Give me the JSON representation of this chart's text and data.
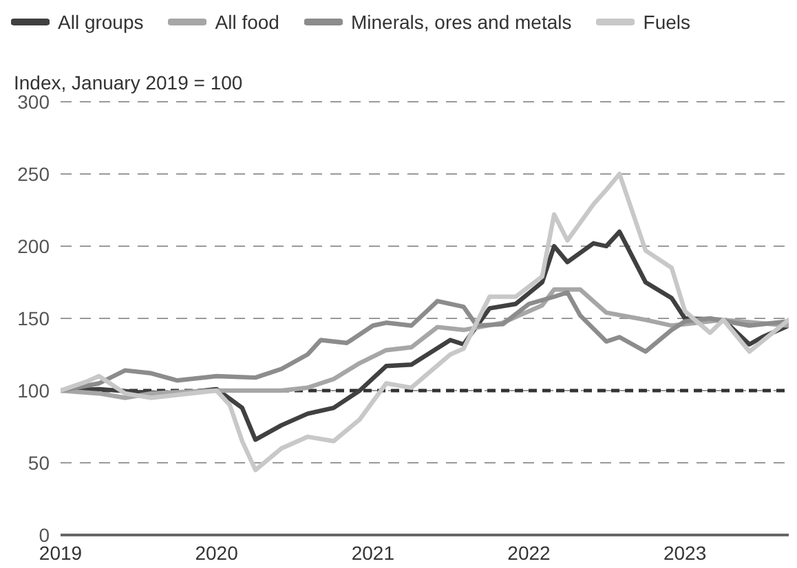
{
  "chart_data": {
    "type": "line",
    "ylabel": "Index, January 2019 = 100",
    "legend": "top left",
    "grid": "y",
    "marker": "none",
    "line_style": "solid",
    "xlim": [
      "2019-01",
      "2023-09"
    ],
    "xticks": [
      "2019",
      "2020",
      "2021",
      "2022",
      "2023"
    ],
    "ylim": [
      0,
      300
    ],
    "yticks": [
      0,
      50,
      100,
      150,
      200,
      250,
      300
    ],
    "ref_lines": [
      {
        "axis": "y",
        "value": 100,
        "color": "#333333",
        "line_style": "dashed"
      }
    ],
    "series": [
      {
        "name": "All groups",
        "color": "#404040",
        "x": [
          "2019-01",
          "2019-04",
          "2019-07",
          "2019-10",
          "2020-01",
          "2020-03",
          "2020-04",
          "2020-06",
          "2020-08",
          "2020-10",
          "2020-12",
          "2021-02",
          "2021-04",
          "2021-07",
          "2021-08",
          "2021-10",
          "2021-12",
          "2022-02",
          "2022-03",
          "2022-04",
          "2022-06",
          "2022-07",
          "2022-08",
          "2022-10",
          "2022-12",
          "2023-01",
          "2023-04",
          "2023-06",
          "2023-07",
          "2023-09"
        ],
        "values": [
          100,
          101,
          99,
          98,
          101,
          88,
          66,
          76,
          84,
          88,
          100,
          117,
          118,
          135,
          132,
          157,
          160,
          175,
          200,
          189,
          202,
          200,
          210,
          175,
          164,
          150,
          149,
          132,
          137,
          145
        ]
      },
      {
        "name": "All food",
        "color": "#a6a6a6",
        "x": [
          "2019-01",
          "2019-04",
          "2019-06",
          "2019-08",
          "2019-10",
          "2020-01",
          "2020-04",
          "2020-06",
          "2020-08",
          "2020-10",
          "2020-12",
          "2021-02",
          "2021-04",
          "2021-06",
          "2021-08",
          "2021-11",
          "2022-02",
          "2022-03",
          "2022-05",
          "2022-07",
          "2022-10",
          "2022-12",
          "2023-04",
          "2023-09"
        ],
        "values": [
          100,
          98,
          95,
          98,
          99,
          100,
          100,
          100,
          102,
          108,
          119,
          128,
          130,
          144,
          142,
          147,
          159,
          170,
          170,
          154,
          149,
          145,
          149,
          145
        ]
      },
      {
        "name": "Minerals, ores and metals",
        "color": "#8c8c8c",
        "x": [
          "2019-01",
          "2019-04",
          "2019-06",
          "2019-08",
          "2019-10",
          "2020-01",
          "2020-04",
          "2020-06",
          "2020-08",
          "2020-09",
          "2020-11",
          "2021-01",
          "2021-02",
          "2021-04",
          "2021-06",
          "2021-08",
          "2021-09",
          "2021-11",
          "2022-01",
          "2022-03",
          "2022-04",
          "2022-05",
          "2022-07",
          "2022-08",
          "2022-10",
          "2022-12",
          "2023-01",
          "2023-03",
          "2023-06",
          "2023-09"
        ],
        "values": [
          100,
          105,
          114,
          112,
          107,
          110,
          109,
          115,
          125,
          135,
          133,
          145,
          147,
          145,
          162,
          158,
          145,
          146,
          160,
          165,
          168,
          152,
          134,
          137,
          127,
          142,
          148,
          150,
          145,
          148
        ]
      },
      {
        "name": "Fuels",
        "color": "#c8c8c8",
        "x": [
          "2019-01",
          "2019-03",
          "2019-04",
          "2019-06",
          "2019-08",
          "2019-10",
          "2020-01",
          "2020-02",
          "2020-03",
          "2020-04",
          "2020-06",
          "2020-08",
          "2020-10",
          "2020-12",
          "2021-02",
          "2021-04",
          "2021-07",
          "2021-08",
          "2021-10",
          "2021-12",
          "2022-02",
          "2022-03",
          "2022-04",
          "2022-06",
          "2022-07",
          "2022-08",
          "2022-10",
          "2022-12",
          "2023-01",
          "2023-03",
          "2023-04",
          "2023-06",
          "2023-09"
        ],
        "values": [
          100,
          106,
          110,
          98,
          95,
          97,
          100,
          90,
          65,
          45,
          60,
          68,
          65,
          80,
          105,
          102,
          125,
          129,
          165,
          165,
          179,
          222,
          204,
          229,
          239,
          250,
          197,
          185,
          155,
          140,
          149,
          127,
          149
        ]
      }
    ]
  }
}
